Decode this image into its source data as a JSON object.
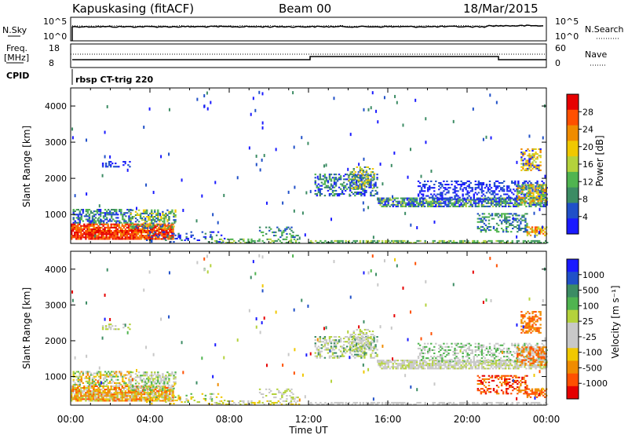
{
  "header": {
    "station": "Kapuskasing (fitACF)",
    "beam": "Beam 00",
    "date": "18/Mar/2015"
  },
  "status_panels": {
    "nsky_label": "N.Sky",
    "nsearch_label": "N.Search",
    "left_ticks": [
      "10^5",
      "10^0"
    ],
    "right_ticks": [
      "10^5",
      "10^0"
    ],
    "freq_label_line1": "Freq.",
    "freq_label_line2": "[MHz]",
    "freq_ticks": [
      "18",
      "8"
    ],
    "nave_label": "Nave",
    "nave_ticks": [
      "60",
      "0"
    ],
    "cpid_label": "CPID",
    "cpid_text": "rbsp CT-trig 220"
  },
  "colors": {
    "power_scale": [
      "#1a1aff",
      "#2050c8",
      "#3c8c64",
      "#50b450",
      "#b4d23c",
      "#f0c800",
      "#f08c00",
      "#ff5000",
      "#e60000"
    ],
    "velocity_scale": [
      "#e60000",
      "#ff5000",
      "#f08c00",
      "#f0c800",
      "#c8c8c8",
      "#c8c8c8",
      "#b4d23c",
      "#50b450",
      "#3c8c64",
      "#2050c8",
      "#1a1aff"
    ]
  },
  "chart_data": [
    {
      "type": "heatmap",
      "name": "power",
      "ylabel": "Slant Range [km]",
      "y_ticks": [
        "1000",
        "2000",
        "3000",
        "4000"
      ],
      "ylim": [
        200,
        4500
      ],
      "x_ticks": [
        "00:00",
        "04:00",
        "08:00",
        "12:00",
        "16:00",
        "20:00",
        "00:00"
      ],
      "xlim_hours": [
        0,
        24
      ],
      "colorbar_label": "Power [dB]",
      "colorbar_ticks": [
        "28",
        "24",
        "20",
        "16",
        "12",
        "8",
        "4"
      ],
      "colorbar_range": [
        0,
        32
      ]
    },
    {
      "type": "heatmap",
      "name": "velocity",
      "ylabel": "Slant Range [km]",
      "y_ticks": [
        "1000",
        "2000",
        "3000",
        "4000"
      ],
      "ylim": [
        200,
        4500
      ],
      "x_ticks": [
        "00:00",
        "04:00",
        "08:00",
        "12:00",
        "16:00",
        "20:00",
        "00:00"
      ],
      "xlabel": "Time UT",
      "xlim_hours": [
        0,
        24
      ],
      "colorbar_label": "Velocity [m s⁻¹]",
      "colorbar_ticks": [
        "1000",
        "500",
        "100",
        "25",
        "-25",
        "-100",
        "-500",
        "-1000"
      ]
    }
  ]
}
